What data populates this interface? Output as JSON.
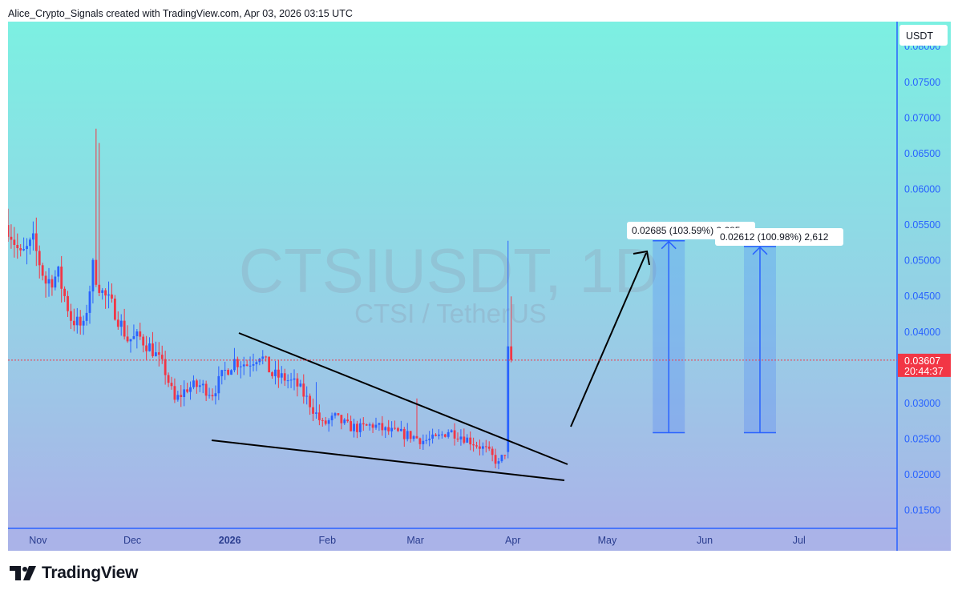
{
  "header": {
    "credit": "Alice_Crypto_Signals created with TradingView.com, Apr 03, 2026 03:15 UTC"
  },
  "footer": {
    "brand": "TradingView"
  },
  "chart_data": {
    "type": "candlestick",
    "symbol": "CTSIUSDT, 1D",
    "subtitle": "CTSI / TetherUS",
    "currency": "USDT",
    "x_tick_labels": [
      "Nov",
      "Dec",
      "2026",
      "Feb",
      "Mar",
      "Apr",
      "May",
      "Jun",
      "Jul"
    ],
    "y_tick_labels": [
      "0.08000",
      "0.07500",
      "0.07000",
      "0.06500",
      "0.06000",
      "0.05500",
      "0.05000",
      "0.04500",
      "0.04000",
      "0.03000",
      "0.02500",
      "0.02000",
      "0.01500"
    ],
    "y_range": [
      0.0125,
      0.0835
    ],
    "last_price": "0.03607",
    "countdown": "20:44:37",
    "colors": {
      "up": "#2962ff",
      "down": "#f23645",
      "background_top": "#7cf0e2",
      "background_bottom": "#aab3e8",
      "axis": "#2962ff"
    },
    "annotations": [
      {
        "label": "0.02685 (103.59%) 2,685",
        "from": 0.0259,
        "to": 0.0528
      },
      {
        "label": "0.02612 (100.98%) 2,612",
        "from": 0.0259,
        "to": 0.052
      }
    ],
    "pattern": "falling wedge",
    "close_path": [
      [
        "2025-10-24",
        0.055
      ],
      [
        "2025-10-28",
        0.0505
      ],
      [
        "2025-11-01",
        0.0525
      ],
      [
        "2025-11-05",
        0.047
      ],
      [
        "2025-11-09",
        0.048
      ],
      [
        "2025-11-13",
        0.042
      ],
      [
        "2025-11-17",
        0.0405
      ],
      [
        "2025-11-20",
        0.049
      ],
      [
        "2025-11-23",
        0.0455
      ],
      [
        "2025-11-27",
        0.043
      ],
      [
        "2025-12-01",
        0.039
      ],
      [
        "2025-12-05",
        0.0392
      ],
      [
        "2025-12-09",
        0.0375
      ],
      [
        "2025-12-13",
        0.0345
      ],
      [
        "2025-12-16",
        0.0303
      ],
      [
        "2025-12-20",
        0.0322
      ],
      [
        "2025-12-24",
        0.0325
      ],
      [
        "2025-12-28",
        0.0315
      ],
      [
        "2026-01-01",
        0.0345
      ],
      [
        "2026-01-04",
        0.036
      ],
      [
        "2026-01-08",
        0.0355
      ],
      [
        "2026-01-12",
        0.037
      ],
      [
        "2026-01-16",
        0.034
      ],
      [
        "2026-01-20",
        0.0335
      ],
      [
        "2026-01-24",
        0.0325
      ],
      [
        "2026-01-28",
        0.03
      ],
      [
        "2026-02-01",
        0.027
      ],
      [
        "2026-02-05",
        0.028
      ],
      [
        "2026-02-09",
        0.0268
      ],
      [
        "2026-02-13",
        0.0265
      ],
      [
        "2026-02-17",
        0.027
      ],
      [
        "2026-02-21",
        0.0262
      ],
      [
        "2026-02-25",
        0.0258
      ],
      [
        "2026-03-01",
        0.0255
      ],
      [
        "2026-03-05",
        0.0248
      ],
      [
        "2026-03-09",
        0.025
      ],
      [
        "2026-03-13",
        0.0262
      ],
      [
        "2026-03-17",
        0.0255
      ],
      [
        "2026-03-21",
        0.0245
      ],
      [
        "2026-03-25",
        0.0235
      ],
      [
        "2026-03-29",
        0.0215
      ],
      [
        "2026-03-31",
        0.0232
      ],
      [
        "2026-04-01",
        0.038
      ],
      [
        "2026-04-02",
        0.0361
      ]
    ]
  }
}
